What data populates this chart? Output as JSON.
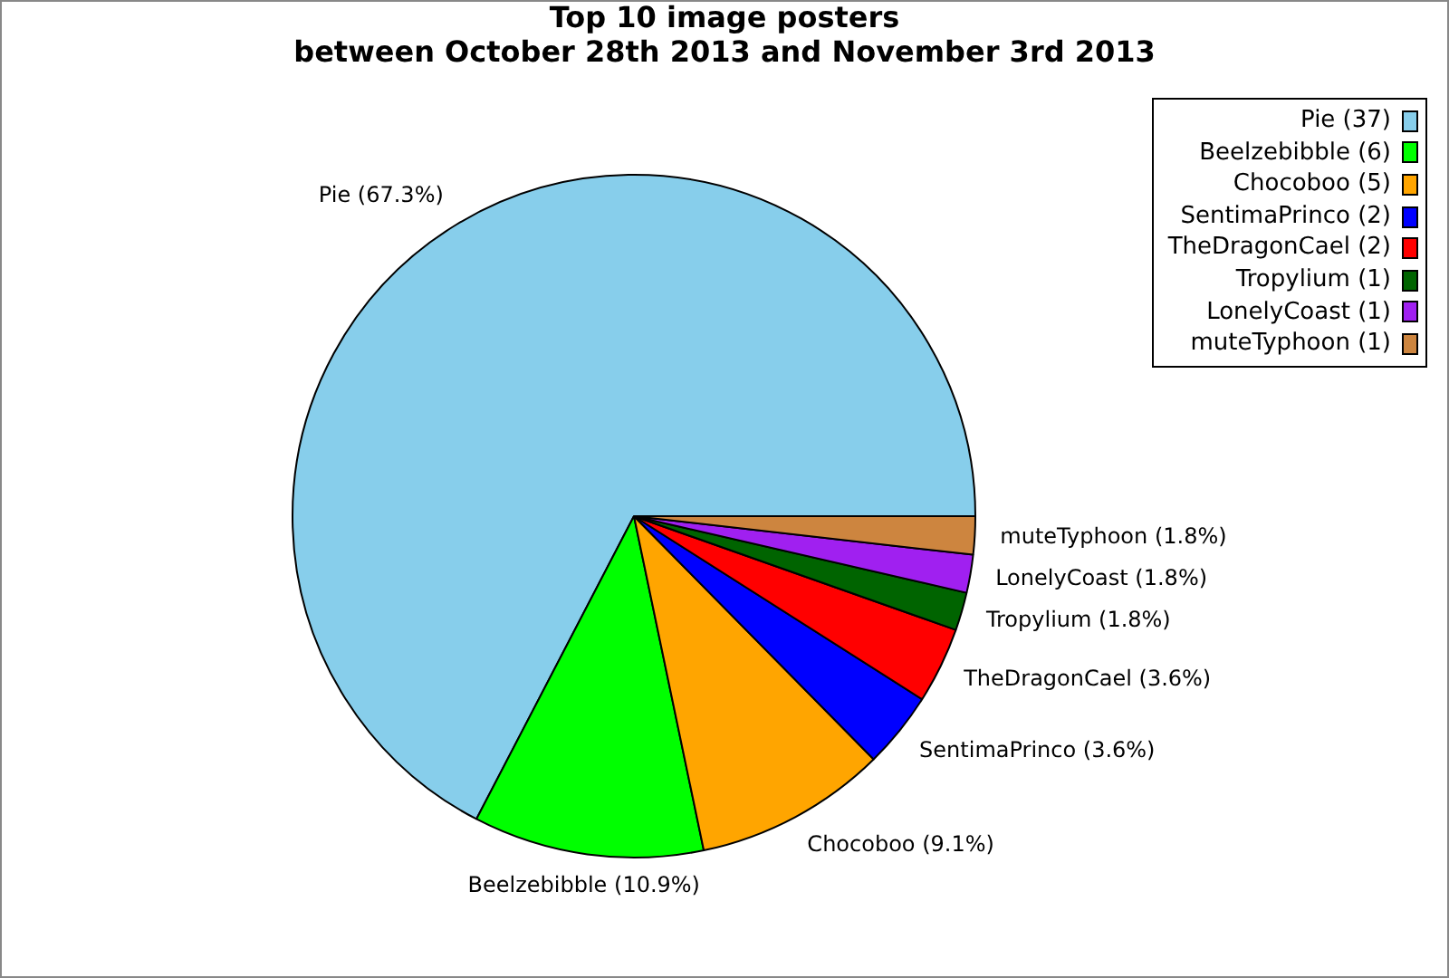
{
  "chart_data": {
    "type": "pie",
    "title": "Top 10 image posters\nbetween October 28th 2013 and November 3rd 2013",
    "categories": [
      "Pie (37)",
      "Beelzebibble (6)",
      "Chocoboo (5)",
      "SentimaPrinco (2)",
      "TheDragonCael (2)",
      "Tropylium (1)",
      "LonelyCoast (1)",
      "muteTyphoon (1)"
    ],
    "values": [
      67.3,
      10.9,
      9.1,
      3.6,
      3.6,
      1.8,
      1.8,
      1.8
    ],
    "value_labels": [
      "Pie (67.3%)",
      "Beelzebibble (10.9%)",
      "Chocoboo (9.1%)",
      "SentimaPrinco (3.6%)",
      "TheDragonCael (3.6%)",
      "Tropylium (1.8%)",
      "LonelyCoast (1.8%)",
      "muteTyphoon (1.8%)"
    ],
    "colors": [
      "#87ceeb",
      "#00ff00",
      "#ffa500",
      "#0000ff",
      "#ff0000",
      "#006400",
      "#a020f0",
      "#cd853f"
    ],
    "legend": "top right"
  }
}
